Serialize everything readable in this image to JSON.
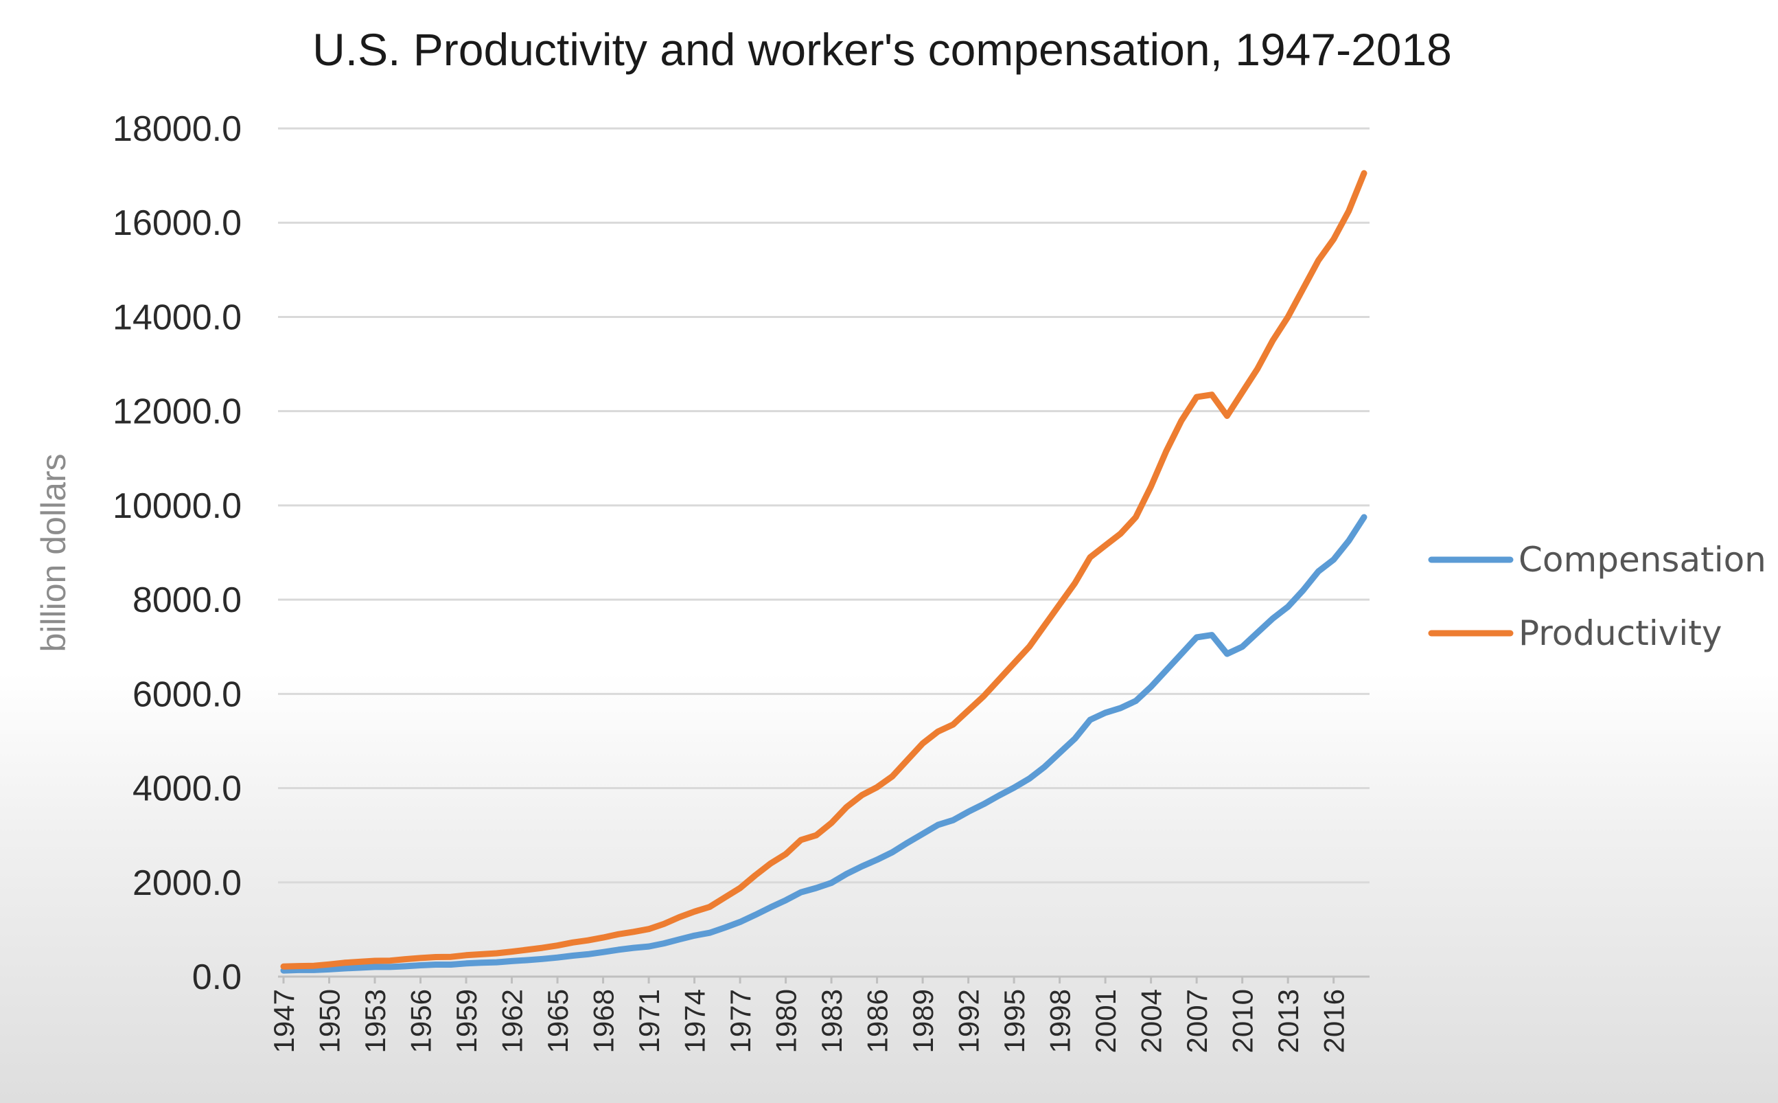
{
  "chart_data": {
    "type": "line",
    "title": "U.S. Productivity and worker's compensation, 1947-2018",
    "xlabel": "",
    "ylabel": "billion dollars",
    "ylim": [
      0,
      18000
    ],
    "yticks": [
      "0.0",
      "2000.0",
      "4000.0",
      "6000.0",
      "8000.0",
      "10000.0",
      "12000.0",
      "14000.0",
      "16000.0",
      "18000.0"
    ],
    "x_tick_labels": [
      "1947",
      "1950",
      "1953",
      "1956",
      "1959",
      "1962",
      "1965",
      "1968",
      "1971",
      "1974",
      "1977",
      "1980",
      "1983",
      "1986",
      "1989",
      "1992",
      "1995",
      "1998",
      "2001",
      "2004",
      "2007",
      "2010",
      "2013",
      "2016"
    ],
    "x": [
      1947,
      1948,
      1949,
      1950,
      1951,
      1952,
      1953,
      1954,
      1955,
      1956,
      1957,
      1958,
      1959,
      1960,
      1961,
      1962,
      1963,
      1964,
      1965,
      1966,
      1967,
      1968,
      1969,
      1970,
      1971,
      1972,
      1973,
      1974,
      1975,
      1976,
      1977,
      1978,
      1979,
      1980,
      1981,
      1982,
      1983,
      1984,
      1985,
      1986,
      1987,
      1988,
      1989,
      1990,
      1991,
      1992,
      1993,
      1994,
      1995,
      1996,
      1997,
      1998,
      1999,
      2000,
      2001,
      2002,
      2003,
      2004,
      2005,
      2006,
      2007,
      2008,
      2009,
      2010,
      2011,
      2012,
      2013,
      2014,
      2015,
      2016,
      2017,
      2018
    ],
    "grid": true,
    "legend_position": "right",
    "series": [
      {
        "name": "Compensation",
        "color": "#5b9bd5",
        "values": [
          130,
          140,
          140,
          155,
          175,
          190,
          205,
          205,
          220,
          240,
          255,
          255,
          280,
          295,
          305,
          330,
          350,
          375,
          405,
          445,
          475,
          520,
          570,
          610,
          640,
          705,
          790,
          870,
          930,
          1040,
          1160,
          1310,
          1470,
          1620,
          1790,
          1880,
          1990,
          2180,
          2340,
          2480,
          2640,
          2840,
          3030,
          3220,
          3320,
          3500,
          3660,
          3840,
          4010,
          4200,
          4450,
          4750,
          5050,
          5450,
          5600,
          5700,
          5850,
          6150,
          6500,
          6850,
          7200,
          7250,
          6850,
          7000,
          7300,
          7600,
          7850,
          8200,
          8600,
          8850,
          9250,
          9750
        ]
      },
      {
        "name": "Productivity",
        "color": "#ed7d31",
        "values": [
          215,
          225,
          230,
          260,
          295,
          315,
          335,
          340,
          370,
          395,
          415,
          420,
          455,
          475,
          495,
          530,
          570,
          610,
          660,
          725,
          770,
          830,
          900,
          950,
          1010,
          1120,
          1260,
          1380,
          1480,
          1680,
          1880,
          2150,
          2400,
          2600,
          2900,
          3000,
          3260,
          3600,
          3850,
          4020,
          4250,
          4600,
          4950,
          5200,
          5350,
          5650,
          5950,
          6300,
          6650,
          7000,
          7450,
          7900,
          8350,
          8900,
          9150,
          9400,
          9750,
          10400,
          11150,
          11800,
          12300,
          12350,
          11900,
          12400,
          12900,
          13500,
          14000,
          14600,
          15200,
          15650,
          16250,
          17050
        ]
      }
    ]
  }
}
